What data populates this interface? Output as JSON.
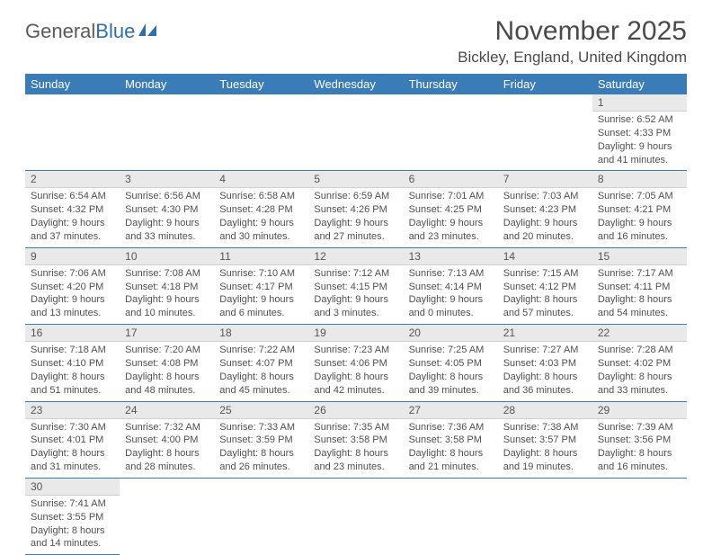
{
  "logo": {
    "text_general": "General",
    "text_blue": "Blue"
  },
  "title": "November 2025",
  "location": "Bickley, England, United Kingdom",
  "colors": {
    "header_bg": "#3a7cb8",
    "header_text": "#ffffff",
    "daynum_bg": "#e9e9e9",
    "cell_border": "#3a7cb8",
    "body_text": "#505050",
    "logo_gray": "#5a5a5a",
    "logo_blue": "#2f6fa8"
  },
  "typography": {
    "title_fontsize": 30,
    "location_fontsize": 17,
    "header_fontsize": 13,
    "daynum_fontsize": 12,
    "body_fontsize": 11
  },
  "day_headers": [
    "Sunday",
    "Monday",
    "Tuesday",
    "Wednesday",
    "Thursday",
    "Friday",
    "Saturday"
  ],
  "weeks": [
    [
      null,
      null,
      null,
      null,
      null,
      null,
      {
        "n": "1",
        "sr": "Sunrise: 6:52 AM",
        "ss": "Sunset: 4:33 PM",
        "d1": "Daylight: 9 hours",
        "d2": "and 41 minutes."
      }
    ],
    [
      {
        "n": "2",
        "sr": "Sunrise: 6:54 AM",
        "ss": "Sunset: 4:32 PM",
        "d1": "Daylight: 9 hours",
        "d2": "and 37 minutes."
      },
      {
        "n": "3",
        "sr": "Sunrise: 6:56 AM",
        "ss": "Sunset: 4:30 PM",
        "d1": "Daylight: 9 hours",
        "d2": "and 33 minutes."
      },
      {
        "n": "4",
        "sr": "Sunrise: 6:58 AM",
        "ss": "Sunset: 4:28 PM",
        "d1": "Daylight: 9 hours",
        "d2": "and 30 minutes."
      },
      {
        "n": "5",
        "sr": "Sunrise: 6:59 AM",
        "ss": "Sunset: 4:26 PM",
        "d1": "Daylight: 9 hours",
        "d2": "and 27 minutes."
      },
      {
        "n": "6",
        "sr": "Sunrise: 7:01 AM",
        "ss": "Sunset: 4:25 PM",
        "d1": "Daylight: 9 hours",
        "d2": "and 23 minutes."
      },
      {
        "n": "7",
        "sr": "Sunrise: 7:03 AM",
        "ss": "Sunset: 4:23 PM",
        "d1": "Daylight: 9 hours",
        "d2": "and 20 minutes."
      },
      {
        "n": "8",
        "sr": "Sunrise: 7:05 AM",
        "ss": "Sunset: 4:21 PM",
        "d1": "Daylight: 9 hours",
        "d2": "and 16 minutes."
      }
    ],
    [
      {
        "n": "9",
        "sr": "Sunrise: 7:06 AM",
        "ss": "Sunset: 4:20 PM",
        "d1": "Daylight: 9 hours",
        "d2": "and 13 minutes."
      },
      {
        "n": "10",
        "sr": "Sunrise: 7:08 AM",
        "ss": "Sunset: 4:18 PM",
        "d1": "Daylight: 9 hours",
        "d2": "and 10 minutes."
      },
      {
        "n": "11",
        "sr": "Sunrise: 7:10 AM",
        "ss": "Sunset: 4:17 PM",
        "d1": "Daylight: 9 hours",
        "d2": "and 6 minutes."
      },
      {
        "n": "12",
        "sr": "Sunrise: 7:12 AM",
        "ss": "Sunset: 4:15 PM",
        "d1": "Daylight: 9 hours",
        "d2": "and 3 minutes."
      },
      {
        "n": "13",
        "sr": "Sunrise: 7:13 AM",
        "ss": "Sunset: 4:14 PM",
        "d1": "Daylight: 9 hours",
        "d2": "and 0 minutes."
      },
      {
        "n": "14",
        "sr": "Sunrise: 7:15 AM",
        "ss": "Sunset: 4:12 PM",
        "d1": "Daylight: 8 hours",
        "d2": "and 57 minutes."
      },
      {
        "n": "15",
        "sr": "Sunrise: 7:17 AM",
        "ss": "Sunset: 4:11 PM",
        "d1": "Daylight: 8 hours",
        "d2": "and 54 minutes."
      }
    ],
    [
      {
        "n": "16",
        "sr": "Sunrise: 7:18 AM",
        "ss": "Sunset: 4:10 PM",
        "d1": "Daylight: 8 hours",
        "d2": "and 51 minutes."
      },
      {
        "n": "17",
        "sr": "Sunrise: 7:20 AM",
        "ss": "Sunset: 4:08 PM",
        "d1": "Daylight: 8 hours",
        "d2": "and 48 minutes."
      },
      {
        "n": "18",
        "sr": "Sunrise: 7:22 AM",
        "ss": "Sunset: 4:07 PM",
        "d1": "Daylight: 8 hours",
        "d2": "and 45 minutes."
      },
      {
        "n": "19",
        "sr": "Sunrise: 7:23 AM",
        "ss": "Sunset: 4:06 PM",
        "d1": "Daylight: 8 hours",
        "d2": "and 42 minutes."
      },
      {
        "n": "20",
        "sr": "Sunrise: 7:25 AM",
        "ss": "Sunset: 4:05 PM",
        "d1": "Daylight: 8 hours",
        "d2": "and 39 minutes."
      },
      {
        "n": "21",
        "sr": "Sunrise: 7:27 AM",
        "ss": "Sunset: 4:03 PM",
        "d1": "Daylight: 8 hours",
        "d2": "and 36 minutes."
      },
      {
        "n": "22",
        "sr": "Sunrise: 7:28 AM",
        "ss": "Sunset: 4:02 PM",
        "d1": "Daylight: 8 hours",
        "d2": "and 33 minutes."
      }
    ],
    [
      {
        "n": "23",
        "sr": "Sunrise: 7:30 AM",
        "ss": "Sunset: 4:01 PM",
        "d1": "Daylight: 8 hours",
        "d2": "and 31 minutes."
      },
      {
        "n": "24",
        "sr": "Sunrise: 7:32 AM",
        "ss": "Sunset: 4:00 PM",
        "d1": "Daylight: 8 hours",
        "d2": "and 28 minutes."
      },
      {
        "n": "25",
        "sr": "Sunrise: 7:33 AM",
        "ss": "Sunset: 3:59 PM",
        "d1": "Daylight: 8 hours",
        "d2": "and 26 minutes."
      },
      {
        "n": "26",
        "sr": "Sunrise: 7:35 AM",
        "ss": "Sunset: 3:58 PM",
        "d1": "Daylight: 8 hours",
        "d2": "and 23 minutes."
      },
      {
        "n": "27",
        "sr": "Sunrise: 7:36 AM",
        "ss": "Sunset: 3:58 PM",
        "d1": "Daylight: 8 hours",
        "d2": "and 21 minutes."
      },
      {
        "n": "28",
        "sr": "Sunrise: 7:38 AM",
        "ss": "Sunset: 3:57 PM",
        "d1": "Daylight: 8 hours",
        "d2": "and 19 minutes."
      },
      {
        "n": "29",
        "sr": "Sunrise: 7:39 AM",
        "ss": "Sunset: 3:56 PM",
        "d1": "Daylight: 8 hours",
        "d2": "and 16 minutes."
      }
    ],
    [
      {
        "n": "30",
        "sr": "Sunrise: 7:41 AM",
        "ss": "Sunset: 3:55 PM",
        "d1": "Daylight: 8 hours",
        "d2": "and 14 minutes."
      },
      null,
      null,
      null,
      null,
      null,
      null
    ]
  ]
}
